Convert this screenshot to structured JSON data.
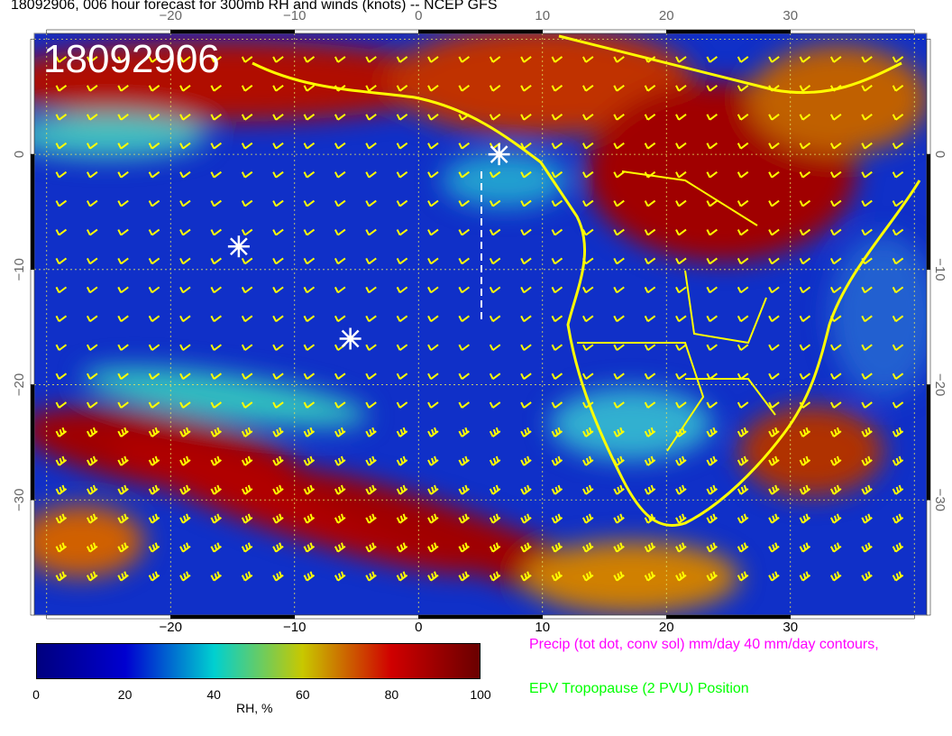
{
  "title": "18092906, 006 hour forecast for 300mb RH and winds (knots) -- NCEP GFS",
  "map": {
    "stamp": "18092906",
    "lon_ticks": [
      "−20",
      "−10",
      "0",
      "10",
      "20",
      "30"
    ],
    "lat_ticks": [
      "0",
      "−10",
      "−20",
      "−30"
    ],
    "lon_range": [
      -31,
      41
    ],
    "lat_range": [
      -40,
      10.5
    ],
    "coastline_color": "#ffff00",
    "wind_barb_color": "#ffff00",
    "precip_contour_color": "#ff00ff",
    "markers": "white asterisks"
  },
  "colorbar": {
    "ticks": [
      "0",
      "20",
      "40",
      "60",
      "80",
      "100"
    ],
    "label": "RH, %",
    "colors": [
      "#00007f",
      "#0000d0",
      "#00d0d0",
      "#c8c800",
      "#d00000",
      "#6a0000"
    ]
  },
  "legend": {
    "precip": "Precip (tot dot, conv sol) mm/day 40 mm/day contours,",
    "precip_color": "#ff00ff",
    "epv": "EPV Tropopause (2 PVU) Position",
    "epv_color": "#00ff00"
  }
}
